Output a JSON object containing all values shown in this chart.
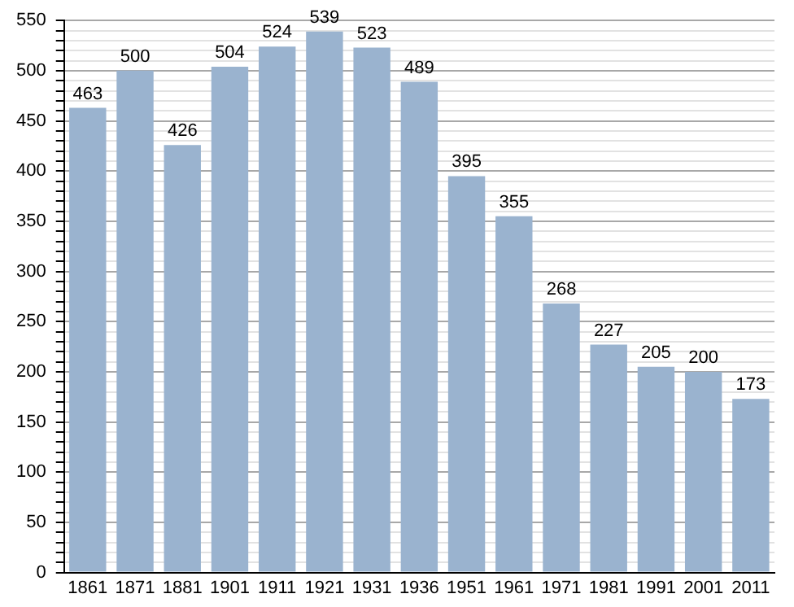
{
  "chart_data": {
    "type": "bar",
    "categories": [
      "1861",
      "1871",
      "1881",
      "1901",
      "1911",
      "1921",
      "1931",
      "1936",
      "1951",
      "1961",
      "1971",
      "1981",
      "1991",
      "2001",
      "2011"
    ],
    "values": [
      463,
      500,
      426,
      504,
      524,
      539,
      523,
      489,
      395,
      355,
      268,
      227,
      205,
      200,
      173
    ],
    "color": "#9ab3cf",
    "ylim": [
      0,
      550
    ],
    "yticks": [
      0,
      {
        "value": 10,
        "label": null
      },
      {
        "value": 20,
        "label": null
      },
      {
        "value": 30,
        "label": null
      },
      {
        "value": 40,
        "label": null
      },
      50,
      {
        "value": 60,
        "label": null
      },
      {
        "value": 70,
        "label": null
      },
      {
        "value": 80,
        "label": null
      },
      {
        "value": 90,
        "label": null
      },
      100,
      {
        "value": 110,
        "label": null
      },
      {
        "value": 120,
        "label": null
      },
      {
        "value": 130,
        "label": null
      },
      {
        "value": 140,
        "label": null
      },
      150,
      {
        "value": 160,
        "label": null
      },
      {
        "value": 170,
        "label": null
      },
      {
        "value": 180,
        "label": null
      },
      {
        "value": 190,
        "label": null
      },
      200,
      {
        "value": 210,
        "label": null
      },
      {
        "value": 220,
        "label": null
      },
      {
        "value": 230,
        "label": null
      },
      {
        "value": 240,
        "label": null
      },
      250,
      {
        "value": 260,
        "label": null
      },
      {
        "value": 270,
        "label": null
      },
      {
        "value": 280,
        "label": null
      },
      {
        "value": 290,
        "label": null
      },
      300,
      {
        "value": 310,
        "label": null
      },
      {
        "value": 320,
        "label": null
      },
      {
        "value": 330,
        "label": null
      },
      {
        "value": 340,
        "label": null
      },
      350,
      {
        "value": 360,
        "label": null
      },
      {
        "value": 370,
        "label": null
      },
      {
        "value": 380,
        "label": null
      },
      {
        "value": 390,
        "label": null
      },
      400,
      {
        "value": 410,
        "label": null
      },
      {
        "value": 420,
        "label": null
      },
      {
        "value": 430,
        "label": null
      },
      {
        "value": 440,
        "label": null
      },
      450,
      {
        "value": 460,
        "label": null
      },
      {
        "value": 470,
        "label": null
      },
      {
        "value": 480,
        "label": null
      },
      {
        "value": 490,
        "label": null
      },
      500,
      {
        "value": 510,
        "label": null
      },
      {
        "value": 520,
        "label": null
      },
      {
        "value": 530,
        "label": null
      },
      {
        "value": 540,
        "label": null
      },
      550
    ],
    "grid": "y",
    "data_labels": true
  }
}
